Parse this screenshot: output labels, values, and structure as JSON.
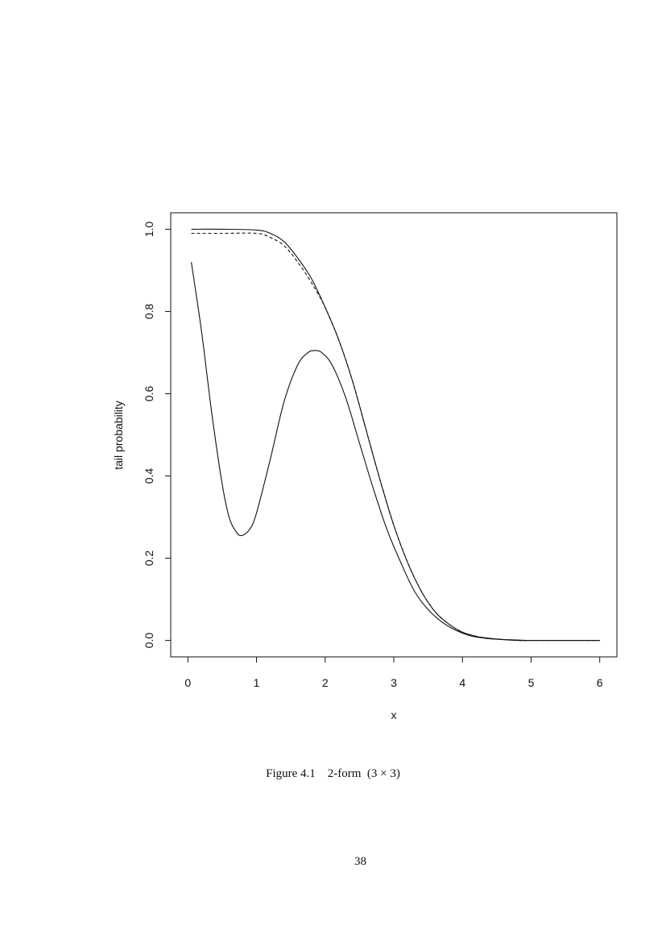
{
  "chart_data": {
    "type": "line",
    "title": "",
    "xlabel": "x",
    "ylabel": "tail probability",
    "xlim": [
      -0.25,
      6.25
    ],
    "ylim": [
      -0.04,
      1.04
    ],
    "xticks": [
      0,
      1,
      2,
      3,
      4,
      5,
      6
    ],
    "yticks": [
      0.0,
      0.2,
      0.4,
      0.6,
      0.8,
      1.0
    ],
    "xtick_labels": [
      "0",
      "1",
      "2",
      "3",
      "4",
      "5",
      "6"
    ],
    "ytick_labels": [
      "0.0",
      "0.2",
      "0.4",
      "0.6",
      "0.8",
      "1.0"
    ],
    "grid": false,
    "legend": "none",
    "series": [
      {
        "style": "solid",
        "x": [
          0.05,
          0.5,
          1.0,
          1.2,
          1.4,
          1.6,
          1.8,
          2.0,
          2.2,
          2.4,
          2.6,
          2.8,
          3.0,
          3.2,
          3.4,
          3.6,
          3.8,
          4.0,
          4.2,
          4.4,
          4.6,
          4.8,
          5.0,
          5.5,
          6.0
        ],
        "y": [
          1.0,
          1.0,
          0.998,
          0.99,
          0.97,
          0.93,
          0.88,
          0.81,
          0.73,
          0.63,
          0.51,
          0.39,
          0.28,
          0.19,
          0.12,
          0.07,
          0.04,
          0.02,
          0.01,
          0.005,
          0.002,
          0.0,
          0.0,
          0.0,
          0.0
        ]
      },
      {
        "style": "dashed",
        "x": [
          0.05,
          0.5,
          1.0,
          1.2,
          1.4,
          1.6,
          1.8,
          2.0,
          2.2,
          2.4,
          2.6,
          2.8,
          3.0,
          3.2,
          3.4,
          3.6,
          3.8,
          4.0,
          4.2,
          4.4,
          4.6,
          4.8,
          5.0,
          5.5,
          6.0
        ],
        "y": [
          0.99,
          0.99,
          0.99,
          0.98,
          0.96,
          0.92,
          0.87,
          0.81,
          0.73,
          0.63,
          0.51,
          0.39,
          0.28,
          0.19,
          0.12,
          0.07,
          0.04,
          0.02,
          0.01,
          0.005,
          0.002,
          0.0,
          0.0,
          0.0,
          0.0
        ]
      },
      {
        "style": "solid",
        "x": [
          0.05,
          0.2,
          0.35,
          0.5,
          0.6,
          0.7,
          0.78,
          0.9,
          1.0,
          1.2,
          1.4,
          1.6,
          1.75,
          1.85,
          1.95,
          2.1,
          2.3,
          2.5,
          2.7,
          2.9,
          3.1,
          3.3,
          3.5,
          3.7,
          3.9,
          4.1,
          4.3,
          4.5,
          4.8,
          5.0,
          5.5,
          6.0
        ],
        "y": [
          0.92,
          0.75,
          0.55,
          0.38,
          0.3,
          0.265,
          0.255,
          0.27,
          0.31,
          0.44,
          0.58,
          0.67,
          0.7,
          0.705,
          0.7,
          0.67,
          0.59,
          0.48,
          0.37,
          0.27,
          0.19,
          0.12,
          0.075,
          0.045,
          0.025,
          0.012,
          0.006,
          0.003,
          0.001,
          0.0,
          0.0,
          0.0
        ]
      }
    ]
  },
  "caption": {
    "label": "Figure 4.1",
    "text": "2-form  (3 × 3)"
  },
  "page_number": "38"
}
